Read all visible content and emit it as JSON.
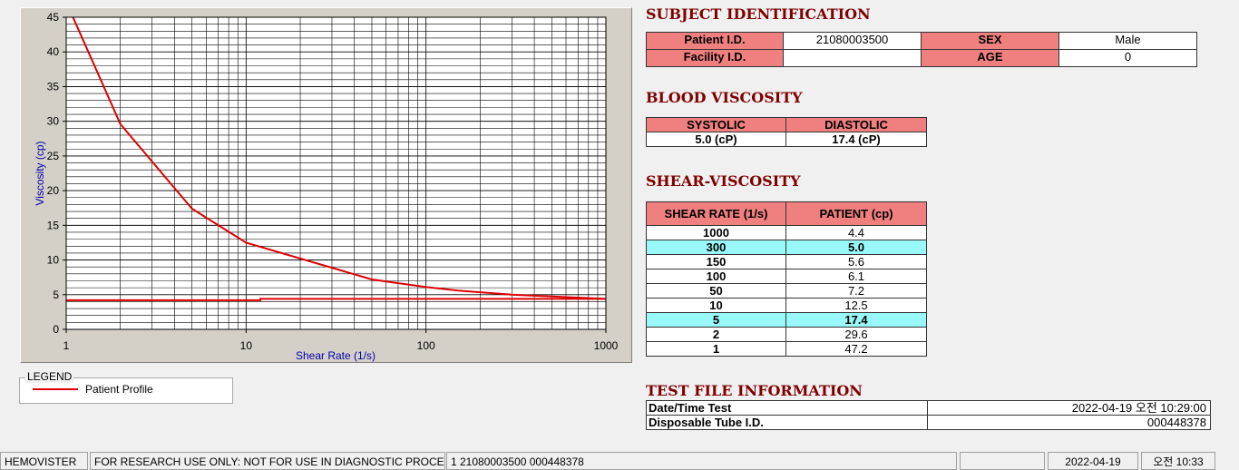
{
  "chart_data": {
    "type": "line",
    "xlabel": "Shear Rate (1/s)",
    "ylabel": "Viscosity (cp)",
    "xlim": [
      1,
      1000
    ],
    "xticks": [
      1,
      10,
      100,
      1000
    ],
    "xscale": "log",
    "ylim": [
      0,
      45
    ],
    "yticks": [
      0,
      5,
      10,
      15,
      20,
      25,
      30,
      35,
      40,
      45
    ],
    "grid": true,
    "series": [
      {
        "name": "Patient Profile",
        "color": "#dd0000",
        "x": [
          1,
          2,
          5,
          10,
          50,
          100,
          150,
          300,
          1000
        ],
        "values": [
          47.2,
          29.6,
          17.4,
          12.5,
          7.2,
          6.1,
          5.6,
          5.0,
          4.4
        ]
      },
      {
        "color": "#dd0000",
        "x": [
          1,
          12,
          12,
          1000
        ],
        "values": [
          4.2,
          4.2,
          4.4,
          4.4
        ]
      }
    ],
    "legend_title": "LEGEND"
  },
  "subject": {
    "title": "SUBJECT IDENTIFICATION",
    "fields": [
      {
        "label": "Patient I.D.",
        "value": "21080003500"
      },
      {
        "label": "SEX",
        "value": "Male"
      },
      {
        "label": "Facility I.D."
      },
      {
        "label": "AGE",
        "value": "0"
      }
    ]
  },
  "blood_viscosity": {
    "title": "BLOOD VISCOSITY",
    "headers": [
      "SYSTOLIC",
      "DIASTOLIC"
    ],
    "values": [
      "5.0 (cP)",
      "17.4 (cP)"
    ]
  },
  "shear_viscosity": {
    "title": "SHEAR-VISCOSITY",
    "headers": [
      "SHEAR RATE (1/s)",
      "PATIENT (cp)"
    ],
    "rows": [
      [
        "1000",
        "4.4"
      ],
      [
        "300",
        "5.0"
      ],
      [
        "150",
        "5.6"
      ],
      [
        "100",
        "6.1"
      ],
      [
        "50",
        "7.2"
      ],
      [
        "10",
        "12.5"
      ],
      [
        "5",
        "17.4"
      ],
      [
        "2",
        "29.6"
      ],
      [
        "1",
        "47.2"
      ]
    ],
    "highlight_rows": [
      1,
      6
    ]
  },
  "test_file": {
    "title": "TEST FILE INFORMATION",
    "rows": [
      [
        "Date/Time Test",
        "2022-04-19   오전 10:29:00"
      ],
      [
        "Disposable Tube I.D.",
        "000448378"
      ]
    ]
  },
  "status_bar": [
    "HEMOVISTER",
    "FOR RESEARCH USE ONLY: NOT FOR USE IN DIAGNOSTIC PROCEDURES",
    "1  21080003500  000448378",
    "2022-04-19",
    "오전 10:33"
  ]
}
